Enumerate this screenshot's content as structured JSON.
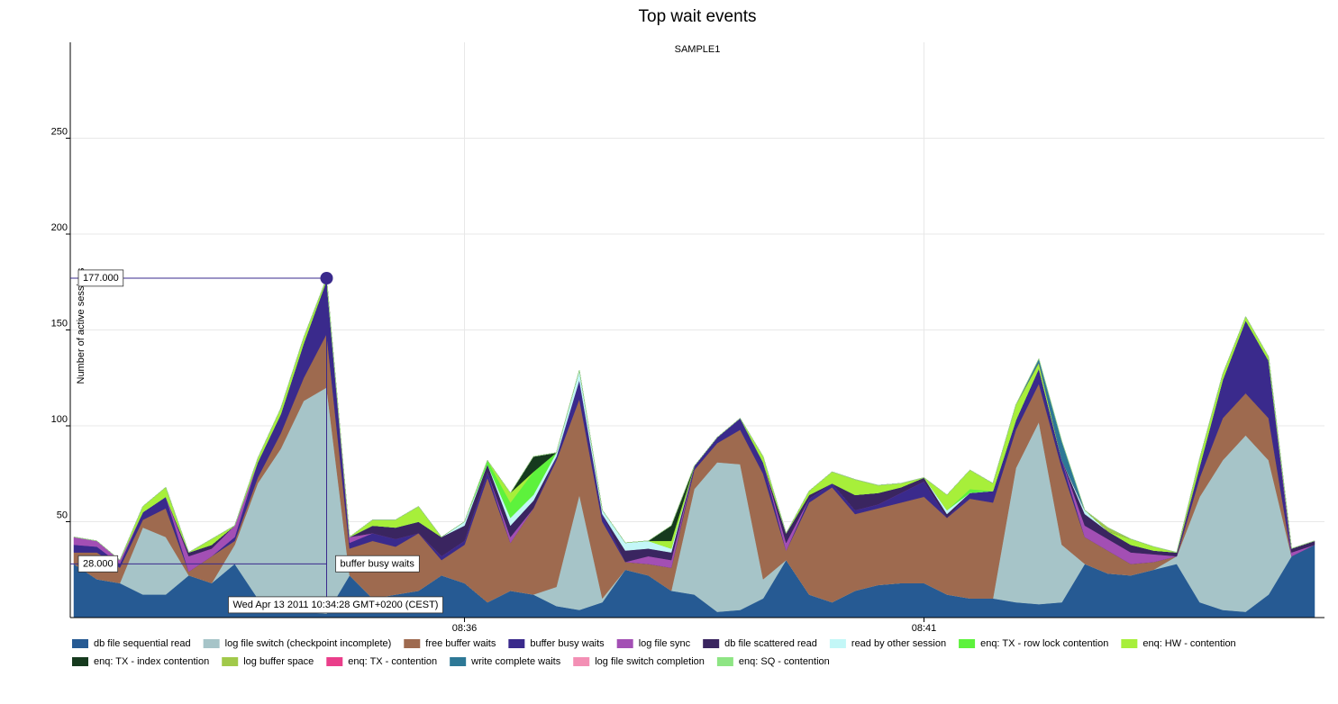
{
  "chart_data": {
    "type": "stacked_area",
    "title": "Top wait events",
    "subtitle": "SAMPLE1",
    "y_label": "Number of active sessions",
    "ylim": [
      0,
      300
    ],
    "yticks": [
      50,
      100,
      150,
      200,
      250
    ],
    "grid": true,
    "legend": "bottom",
    "categories": [
      null,
      null,
      null,
      null,
      null,
      null,
      null,
      null,
      null,
      null,
      null,
      null,
      null,
      null,
      null,
      null,
      null,
      "08:36",
      null,
      null,
      null,
      null,
      null,
      null,
      null,
      null,
      null,
      null,
      null,
      null,
      null,
      null,
      null,
      null,
      null,
      null,
      null,
      "08:41",
      null,
      null,
      null,
      null,
      null,
      null,
      null,
      null,
      null,
      null,
      null,
      null,
      null,
      null,
      null,
      null,
      null
    ],
    "annotations": [
      "177.000",
      "28.000",
      "buffer busy waits",
      "Wed Apr 13 2011 10:34:28 GMT+0200 (CEST)"
    ],
    "series": [
      {
        "name": "db file sequential read",
        "color": "#265a93",
        "values": [
          28,
          20,
          18,
          12,
          12,
          22,
          18,
          28,
          10,
          6,
          3,
          2,
          22,
          10,
          12,
          14,
          22,
          18,
          8,
          14,
          12,
          6,
          4,
          8,
          25,
          22,
          14,
          12,
          3,
          4,
          10,
          30,
          12,
          8,
          14,
          17,
          18,
          18,
          12,
          10,
          10,
          8,
          7,
          8,
          28,
          23,
          22,
          25,
          28,
          8,
          4,
          3,
          12,
          32,
          38
        ]
      },
      {
        "name": "log file switch (checkpoint incomplete)",
        "color": "#a6c4c8",
        "values": [
          0,
          0,
          0,
          35,
          30,
          0,
          0,
          10,
          60,
          82,
          110,
          118,
          0,
          0,
          0,
          0,
          0,
          0,
          0,
          0,
          0,
          10,
          60,
          2,
          0,
          0,
          0,
          55,
          78,
          76,
          10,
          0,
          0,
          0,
          0,
          0,
          0,
          0,
          0,
          0,
          0,
          70,
          95,
          30,
          0,
          0,
          0,
          0,
          4,
          55,
          78,
          92,
          70,
          0,
          0
        ]
      },
      {
        "name": "free buffer waits",
        "color": "#9e6a4f",
        "values": [
          6,
          14,
          8,
          4,
          15,
          2,
          14,
          2,
          3,
          8,
          12,
          28,
          14,
          30,
          25,
          30,
          8,
          20,
          65,
          25,
          45,
          66,
          50,
          40,
          4,
          6,
          12,
          10,
          10,
          18,
          55,
          5,
          48,
          60,
          40,
          40,
          42,
          45,
          40,
          52,
          50,
          20,
          20,
          40,
          14,
          12,
          6,
          4,
          0,
          10,
          22,
          22,
          22,
          0,
          0
        ]
      },
      {
        "name": "buffer busy waits",
        "color": "#3a2a8c",
        "values": [
          4,
          3,
          2,
          4,
          6,
          0,
          0,
          2,
          8,
          10,
          18,
          28,
          3,
          4,
          4,
          0,
          2,
          2,
          3,
          0,
          0,
          2,
          10,
          4,
          0,
          0,
          0,
          2,
          3,
          6,
          6,
          0,
          2,
          2,
          2,
          2,
          5,
          8,
          0,
          3,
          6,
          5,
          8,
          4,
          0,
          0,
          0,
          0,
          0,
          6,
          20,
          38,
          30,
          0,
          0
        ]
      },
      {
        "name": "log file sync",
        "color": "#a34fb4",
        "values": [
          4,
          3,
          2,
          0,
          0,
          8,
          4,
          6,
          0,
          0,
          0,
          0,
          3,
          0,
          0,
          0,
          0,
          0,
          0,
          3,
          0,
          0,
          0,
          0,
          0,
          4,
          4,
          0,
          0,
          0,
          0,
          4,
          0,
          0,
          0,
          0,
          0,
          0,
          0,
          0,
          0,
          0,
          0,
          0,
          6,
          6,
          6,
          4,
          0,
          0,
          0,
          0,
          0,
          2,
          0
        ]
      },
      {
        "name": "db file scattered read",
        "color": "#3a2560",
        "values": [
          0,
          0,
          0,
          0,
          0,
          2,
          2,
          0,
          0,
          0,
          0,
          0,
          0,
          4,
          6,
          6,
          10,
          8,
          4,
          6,
          4,
          0,
          0,
          0,
          6,
          4,
          4,
          0,
          0,
          0,
          0,
          5,
          2,
          0,
          8,
          6,
          3,
          2,
          2,
          0,
          0,
          0,
          0,
          0,
          6,
          4,
          4,
          2,
          2,
          0,
          0,
          0,
          0,
          2,
          2
        ]
      },
      {
        "name": "read by other session",
        "color": "#c3f7f7",
        "values": [
          0,
          0,
          0,
          0,
          0,
          0,
          0,
          0,
          0,
          0,
          0,
          0,
          0,
          0,
          0,
          0,
          0,
          2,
          0,
          4,
          3,
          2,
          5,
          2,
          4,
          4,
          2,
          0,
          0,
          0,
          0,
          0,
          0,
          0,
          0,
          0,
          0,
          0,
          2,
          0,
          0,
          0,
          0,
          0,
          2,
          0,
          0,
          0,
          0,
          0,
          0,
          0,
          0,
          0,
          0
        ]
      },
      {
        "name": "enq: TX - row lock contention",
        "color": "#5df23c",
        "values": [
          0,
          0,
          0,
          0,
          0,
          0,
          0,
          0,
          0,
          0,
          0,
          0,
          0,
          0,
          0,
          0,
          0,
          0,
          2,
          8,
          12,
          0,
          0,
          0,
          0,
          0,
          0,
          0,
          0,
          0,
          0,
          0,
          0,
          0,
          0,
          0,
          0,
          0,
          0,
          2,
          0,
          0,
          0,
          0,
          0,
          0,
          0,
          0,
          0,
          0,
          0,
          0,
          0,
          0,
          0
        ]
      },
      {
        "name": "enq: HW - contention",
        "color": "#a7ef3a",
        "values": [
          0,
          0,
          0,
          3,
          5,
          0,
          3,
          0,
          2,
          3,
          3,
          1,
          0,
          3,
          4,
          8,
          0,
          0,
          0,
          5,
          0,
          0,
          0,
          0,
          0,
          0,
          4,
          0,
          0,
          0,
          3,
          0,
          2,
          6,
          8,
          4,
          2,
          0,
          8,
          10,
          4,
          8,
          3,
          0,
          0,
          0,
          3,
          2,
          0,
          4,
          3,
          2,
          2,
          0,
          0
        ]
      },
      {
        "name": "enq: TX - index contention",
        "color": "#163a1e",
        "values": [
          0,
          0,
          0,
          0,
          0,
          0,
          0,
          0,
          0,
          0,
          0,
          0,
          0,
          0,
          0,
          0,
          0,
          0,
          0,
          0,
          8,
          0,
          0,
          0,
          0,
          0,
          8,
          0,
          0,
          0,
          0,
          0,
          0,
          0,
          0,
          0,
          0,
          0,
          0,
          0,
          0,
          0,
          0,
          0,
          0,
          0,
          0,
          0,
          0,
          0,
          0,
          0,
          0,
          0,
          0
        ]
      },
      {
        "name": "log buffer space",
        "color": "#a1c94a",
        "values": [
          0,
          0,
          0,
          0,
          0,
          0,
          0,
          0,
          0,
          0,
          0,
          0,
          0,
          0,
          0,
          0,
          0,
          0,
          0,
          0,
          0,
          0,
          0,
          0,
          0,
          0,
          0,
          0,
          0,
          0,
          0,
          0,
          0,
          0,
          0,
          0,
          0,
          0,
          0,
          0,
          0,
          0,
          0,
          0,
          0,
          2,
          0,
          0,
          0,
          0,
          0,
          0,
          0,
          0,
          0
        ]
      },
      {
        "name": "enq: TX - contention",
        "color": "#ea3e8a",
        "values": [
          0,
          0,
          0,
          0,
          0,
          0,
          0,
          0,
          0,
          0,
          0,
          0,
          0,
          0,
          0,
          0,
          0,
          0,
          0,
          0,
          0,
          0,
          0,
          0,
          0,
          0,
          0,
          0,
          0,
          0,
          0,
          0,
          0,
          0,
          0,
          0,
          0,
          0,
          0,
          0,
          0,
          0,
          0,
          0,
          0,
          0,
          0,
          0,
          0,
          0,
          0,
          0,
          0,
          0,
          0
        ]
      },
      {
        "name": "write complete waits",
        "color": "#2d7896",
        "values": [
          0,
          0,
          0,
          0,
          0,
          0,
          0,
          0,
          0,
          0,
          0,
          0,
          0,
          0,
          0,
          0,
          0,
          0,
          0,
          0,
          0,
          0,
          0,
          0,
          0,
          0,
          0,
          0,
          0,
          0,
          0,
          0,
          0,
          0,
          0,
          0,
          0,
          0,
          0,
          0,
          0,
          0,
          2,
          10,
          0,
          0,
          0,
          0,
          0,
          0,
          0,
          0,
          0,
          0,
          0
        ]
      },
      {
        "name": "log file switch completion",
        "color": "#f38fb4",
        "values": [
          0,
          0,
          0,
          0,
          0,
          0,
          0,
          0,
          0,
          0,
          0,
          0,
          0,
          0,
          0,
          0,
          0,
          0,
          0,
          0,
          0,
          0,
          0,
          0,
          0,
          0,
          0,
          0,
          0,
          0,
          0,
          0,
          0,
          0,
          0,
          0,
          0,
          0,
          0,
          0,
          0,
          0,
          0,
          0,
          0,
          0,
          0,
          0,
          0,
          0,
          0,
          0,
          0,
          0,
          0
        ]
      },
      {
        "name": "enq: SQ - contention",
        "color": "#8ee584",
        "values": [
          0,
          0,
          0,
          0,
          0,
          0,
          0,
          0,
          0,
          0,
          0,
          0,
          0,
          0,
          0,
          0,
          0,
          0,
          0,
          0,
          0,
          0,
          0,
          0,
          0,
          0,
          0,
          0,
          0,
          0,
          0,
          0,
          0,
          0,
          0,
          0,
          0,
          0,
          0,
          0,
          0,
          0,
          0,
          0,
          0,
          0,
          0,
          0,
          0,
          0,
          0,
          0,
          0,
          0,
          0
        ]
      }
    ]
  }
}
